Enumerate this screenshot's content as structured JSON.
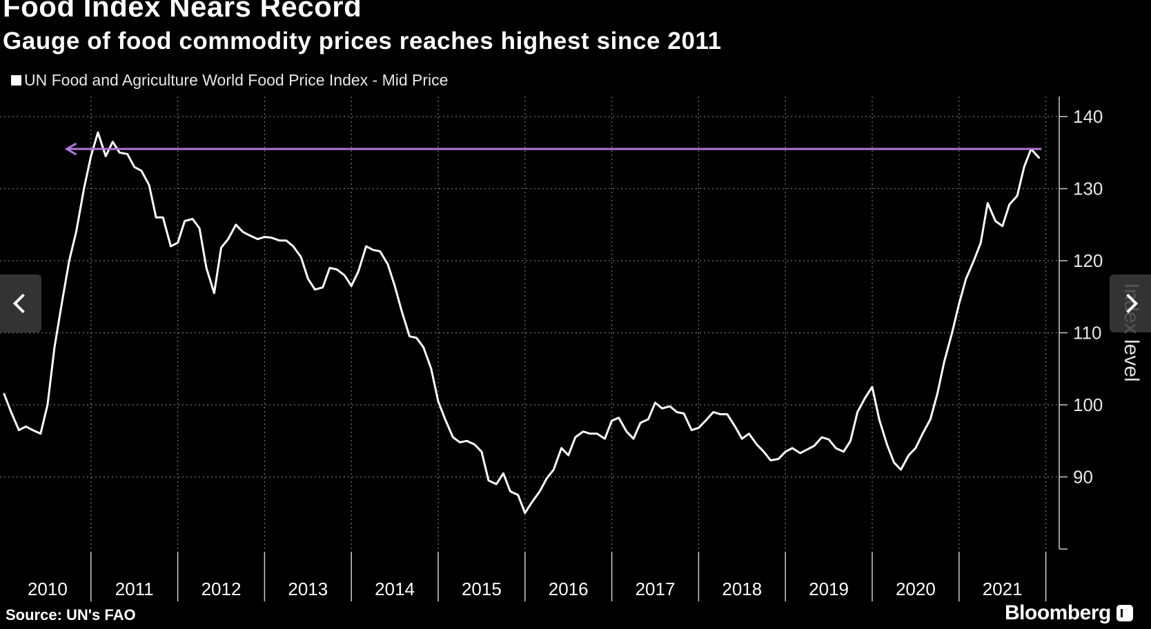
{
  "title": "Food Index Nears Record",
  "subtitle": "Gauge of food commodity prices reaches highest since 2011",
  "legend_label": "UN Food and Agriculture World Food Price Index - Mid Price",
  "source": "Source: UN's FAO",
  "brand": "Bloomberg",
  "colors": {
    "line": "#ffffff",
    "annotation": "#b07ad8",
    "grid": "#777777",
    "background": "#000000"
  },
  "chart_data": {
    "type": "line",
    "ylabel": "Index level",
    "ylim": [
      80,
      140
    ],
    "yticks": [
      90,
      100,
      110,
      120,
      130,
      140
    ],
    "xlim": [
      2010,
      2022
    ],
    "year_labels": [
      "2010",
      "2011",
      "2012",
      "2013",
      "2014",
      "2015",
      "2016",
      "2017",
      "2018",
      "2019",
      "2020",
      "2021"
    ],
    "grid": true,
    "legend_position": "top-left",
    "series": [
      {
        "name": "UN Food and Agriculture World Food Price Index - Mid Price",
        "x": [
          2010.0,
          2010.08,
          2010.17,
          2010.25,
          2010.33,
          2010.42,
          2010.5,
          2010.58,
          2010.67,
          2010.75,
          2010.83,
          2010.92,
          2011.0,
          2011.08,
          2011.17,
          2011.25,
          2011.33,
          2011.42,
          2011.5,
          2011.58,
          2011.67,
          2011.75,
          2011.83,
          2011.92,
          2012.0,
          2012.08,
          2012.17,
          2012.25,
          2012.33,
          2012.42,
          2012.5,
          2012.58,
          2012.67,
          2012.75,
          2012.83,
          2012.92,
          2013.0,
          2013.08,
          2013.17,
          2013.25,
          2013.33,
          2013.42,
          2013.5,
          2013.58,
          2013.67,
          2013.75,
          2013.83,
          2013.92,
          2014.0,
          2014.08,
          2014.17,
          2014.25,
          2014.33,
          2014.42,
          2014.5,
          2014.58,
          2014.67,
          2014.75,
          2014.83,
          2014.92,
          2015.0,
          2015.08,
          2015.17,
          2015.25,
          2015.33,
          2015.42,
          2015.5,
          2015.58,
          2015.67,
          2015.75,
          2015.83,
          2015.92,
          2016.0,
          2016.08,
          2016.17,
          2016.25,
          2016.33,
          2016.42,
          2016.5,
          2016.58,
          2016.67,
          2016.75,
          2016.83,
          2016.92,
          2017.0,
          2017.08,
          2017.17,
          2017.25,
          2017.33,
          2017.42,
          2017.5,
          2017.58,
          2017.67,
          2017.75,
          2017.83,
          2017.92,
          2018.0,
          2018.08,
          2018.17,
          2018.25,
          2018.33,
          2018.42,
          2018.5,
          2018.58,
          2018.67,
          2018.75,
          2018.83,
          2018.92,
          2019.0,
          2019.08,
          2019.17,
          2019.25,
          2019.33,
          2019.42,
          2019.5,
          2019.58,
          2019.67,
          2019.75,
          2019.83,
          2019.92,
          2020.0,
          2020.08,
          2020.17,
          2020.25,
          2020.33,
          2020.42,
          2020.5,
          2020.58,
          2020.67,
          2020.75,
          2020.83,
          2020.92,
          2021.0,
          2021.08,
          2021.17,
          2021.25,
          2021.33,
          2021.42,
          2021.5,
          2021.58,
          2021.67,
          2021.75,
          2021.83,
          2021.92
        ],
        "values": [
          101.5,
          99.0,
          96.5,
          97.0,
          96.5,
          96.0,
          100.0,
          108.0,
          114.5,
          120.0,
          124.0,
          130.0,
          134.5,
          137.8,
          134.5,
          136.5,
          135.0,
          134.8,
          133.0,
          132.5,
          130.5,
          126.0,
          126.0,
          122.0,
          122.5,
          125.5,
          125.8,
          124.5,
          119.0,
          115.5,
          121.8,
          123.0,
          125.0,
          124.0,
          123.5,
          123.0,
          123.3,
          123.2,
          122.8,
          122.8,
          122.0,
          120.5,
          117.5,
          116.0,
          116.3,
          119.0,
          118.8,
          118.0,
          116.5,
          118.5,
          122.0,
          121.5,
          121.3,
          119.5,
          116.5,
          113.0,
          109.5,
          109.3,
          108.0,
          105.0,
          100.5,
          98.0,
          95.5,
          94.8,
          95.0,
          94.5,
          93.5,
          89.5,
          89.0,
          90.5,
          88.0,
          87.5,
          85.0,
          86.5,
          88.0,
          89.8,
          91.0,
          94.0,
          93.0,
          95.5,
          96.3,
          96.0,
          96.0,
          95.3,
          97.8,
          98.2,
          96.3,
          95.3,
          97.5,
          98.0,
          100.3,
          99.5,
          99.8,
          99.0,
          98.8,
          96.5,
          96.8,
          97.8,
          99.0,
          98.7,
          98.7,
          97.0,
          95.3,
          96.0,
          94.5,
          93.5,
          92.3,
          92.5,
          93.5,
          94.0,
          93.3,
          93.8,
          94.3,
          95.5,
          95.2,
          94.0,
          93.5,
          95.0,
          99.0,
          101.0,
          102.5,
          98.0,
          94.5,
          92.0,
          91.0,
          93.0,
          94.0,
          96.0,
          98.0,
          101.5,
          106.0,
          110.0,
          114.0,
          117.5,
          120.0,
          122.5,
          128.0,
          125.5,
          124.8,
          127.8,
          129.0,
          133.0,
          135.5,
          134.3
        ]
      }
    ],
    "annotation": {
      "type": "arrow",
      "from_x": 2021.95,
      "to_x": 2010.72,
      "y": 135.5,
      "color": "#b07ad8"
    }
  },
  "nav": {
    "prev_icon": "chevron-left-icon",
    "next_icon": "chevron-right-icon"
  }
}
